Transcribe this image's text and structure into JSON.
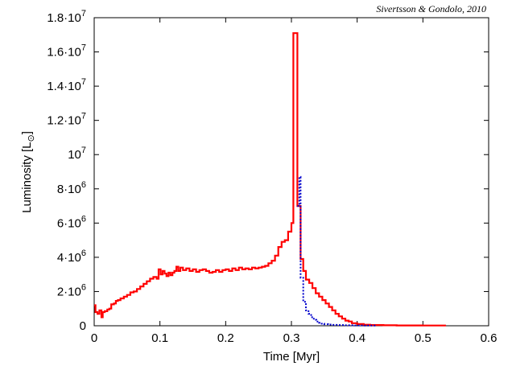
{
  "chart_data": {
    "type": "line",
    "credit": "Sivertsson & Gondolo, 2010",
    "xlabel": "Time [Myr]",
    "ylabel_main": "Luminosity [L",
    "ylabel_symbol": "⊙",
    "ylabel_end": "]",
    "xlim": [
      0,
      0.6
    ],
    "ylim": [
      0,
      18000000
    ],
    "grid": false,
    "legend": "none",
    "x_ticks": [
      {
        "value": 0,
        "label": "0"
      },
      {
        "value": 0.1,
        "label": "0.1"
      },
      {
        "value": 0.2,
        "label": "0.2"
      },
      {
        "value": 0.3,
        "label": "0.3"
      },
      {
        "value": 0.4,
        "label": "0.4"
      },
      {
        "value": 0.5,
        "label": "0.5"
      },
      {
        "value": 0.6,
        "label": "0.6"
      }
    ],
    "y_ticks": [
      {
        "value": 0,
        "mant": "0",
        "exp": ""
      },
      {
        "value": 2000000,
        "mant": "2·10",
        "exp": "6"
      },
      {
        "value": 4000000,
        "mant": "4·10",
        "exp": "6"
      },
      {
        "value": 6000000,
        "mant": "6·10",
        "exp": "6"
      },
      {
        "value": 8000000,
        "mant": "8·10",
        "exp": "6"
      },
      {
        "value": 10000000,
        "mant": "10",
        "exp": "7"
      },
      {
        "value": 12000000,
        "mant": "1.2·10",
        "exp": "7"
      },
      {
        "value": 14000000,
        "mant": "1.4·10",
        "exp": "7"
      },
      {
        "value": 16000000,
        "mant": "1.6·10",
        "exp": "7"
      },
      {
        "value": 18000000,
        "mant": "1.8·10",
        "exp": "7"
      }
    ],
    "series": [
      {
        "color": "#ff0000",
        "style": "solid-step",
        "points": [
          [
            0.0,
            1200000
          ],
          [
            0.002,
            800000
          ],
          [
            0.005,
            700000
          ],
          [
            0.008,
            900000
          ],
          [
            0.011,
            500000
          ],
          [
            0.013,
            800000
          ],
          [
            0.016,
            850000
          ],
          [
            0.02,
            950000
          ],
          [
            0.023,
            1000000
          ],
          [
            0.026,
            1250000
          ],
          [
            0.03,
            1300000
          ],
          [
            0.033,
            1450000
          ],
          [
            0.036,
            1500000
          ],
          [
            0.04,
            1600000
          ],
          [
            0.045,
            1700000
          ],
          [
            0.05,
            1800000
          ],
          [
            0.055,
            1950000
          ],
          [
            0.06,
            2000000
          ],
          [
            0.065,
            2150000
          ],
          [
            0.07,
            2300000
          ],
          [
            0.075,
            2450000
          ],
          [
            0.08,
            2600000
          ],
          [
            0.085,
            2750000
          ],
          [
            0.09,
            2850000
          ],
          [
            0.095,
            2750000
          ],
          [
            0.098,
            3300000
          ],
          [
            0.101,
            3000000
          ],
          [
            0.104,
            3200000
          ],
          [
            0.107,
            3050000
          ],
          [
            0.11,
            2900000
          ],
          [
            0.113,
            3100000
          ],
          [
            0.116,
            2950000
          ],
          [
            0.119,
            3100000
          ],
          [
            0.122,
            3200000
          ],
          [
            0.125,
            3450000
          ],
          [
            0.128,
            3200000
          ],
          [
            0.131,
            3400000
          ],
          [
            0.135,
            3250000
          ],
          [
            0.14,
            3350000
          ],
          [
            0.145,
            3200000
          ],
          [
            0.15,
            3300000
          ],
          [
            0.155,
            3150000
          ],
          [
            0.16,
            3250000
          ],
          [
            0.165,
            3300000
          ],
          [
            0.17,
            3200000
          ],
          [
            0.175,
            3100000
          ],
          [
            0.18,
            3150000
          ],
          [
            0.185,
            3250000
          ],
          [
            0.19,
            3150000
          ],
          [
            0.195,
            3250000
          ],
          [
            0.2,
            3300000
          ],
          [
            0.205,
            3200000
          ],
          [
            0.21,
            3350000
          ],
          [
            0.215,
            3250000
          ],
          [
            0.22,
            3400000
          ],
          [
            0.225,
            3300000
          ],
          [
            0.23,
            3350000
          ],
          [
            0.235,
            3300000
          ],
          [
            0.24,
            3400000
          ],
          [
            0.245,
            3350000
          ],
          [
            0.25,
            3400000
          ],
          [
            0.255,
            3450000
          ],
          [
            0.26,
            3500000
          ],
          [
            0.265,
            3650000
          ],
          [
            0.27,
            3800000
          ],
          [
            0.275,
            4100000
          ],
          [
            0.28,
            4600000
          ],
          [
            0.285,
            4900000
          ],
          [
            0.29,
            5000000
          ],
          [
            0.295,
            5500000
          ],
          [
            0.3,
            6000000
          ],
          [
            0.303,
            17100000
          ],
          [
            0.309,
            7000000
          ],
          [
            0.314,
            3900000
          ],
          [
            0.318,
            3200000
          ],
          [
            0.322,
            2700000
          ],
          [
            0.327,
            2500000
          ],
          [
            0.332,
            2200000
          ],
          [
            0.337,
            1900000
          ],
          [
            0.342,
            1700000
          ],
          [
            0.347,
            1500000
          ],
          [
            0.352,
            1300000
          ],
          [
            0.357,
            1100000
          ],
          [
            0.362,
            900000
          ],
          [
            0.367,
            700000
          ],
          [
            0.372,
            550000
          ],
          [
            0.377,
            420000
          ],
          [
            0.382,
            300000
          ],
          [
            0.387,
            250000
          ],
          [
            0.392,
            150000
          ],
          [
            0.4,
            100000
          ],
          [
            0.41,
            60000
          ],
          [
            0.42,
            40000
          ],
          [
            0.44,
            30000
          ],
          [
            0.46,
            20000
          ],
          [
            0.48,
            20000
          ],
          [
            0.5,
            15000
          ],
          [
            0.52,
            15000
          ],
          [
            0.535,
            15000
          ]
        ]
      },
      {
        "color": "#0000cc",
        "style": "dotted-step",
        "points": [
          [
            0.309,
            7000000
          ],
          [
            0.312,
            8700000
          ],
          [
            0.314,
            2800000
          ],
          [
            0.318,
            1400000
          ],
          [
            0.322,
            900000
          ],
          [
            0.326,
            700000
          ],
          [
            0.33,
            500000
          ],
          [
            0.334,
            350000
          ],
          [
            0.338,
            250000
          ],
          [
            0.342,
            180000
          ],
          [
            0.346,
            120000
          ],
          [
            0.35,
            90000
          ],
          [
            0.356,
            70000
          ],
          [
            0.362,
            50000
          ],
          [
            0.37,
            40000
          ],
          [
            0.38,
            30000
          ],
          [
            0.395,
            20000
          ],
          [
            0.41,
            10000
          ],
          [
            0.43,
            5000
          ]
        ]
      }
    ]
  }
}
